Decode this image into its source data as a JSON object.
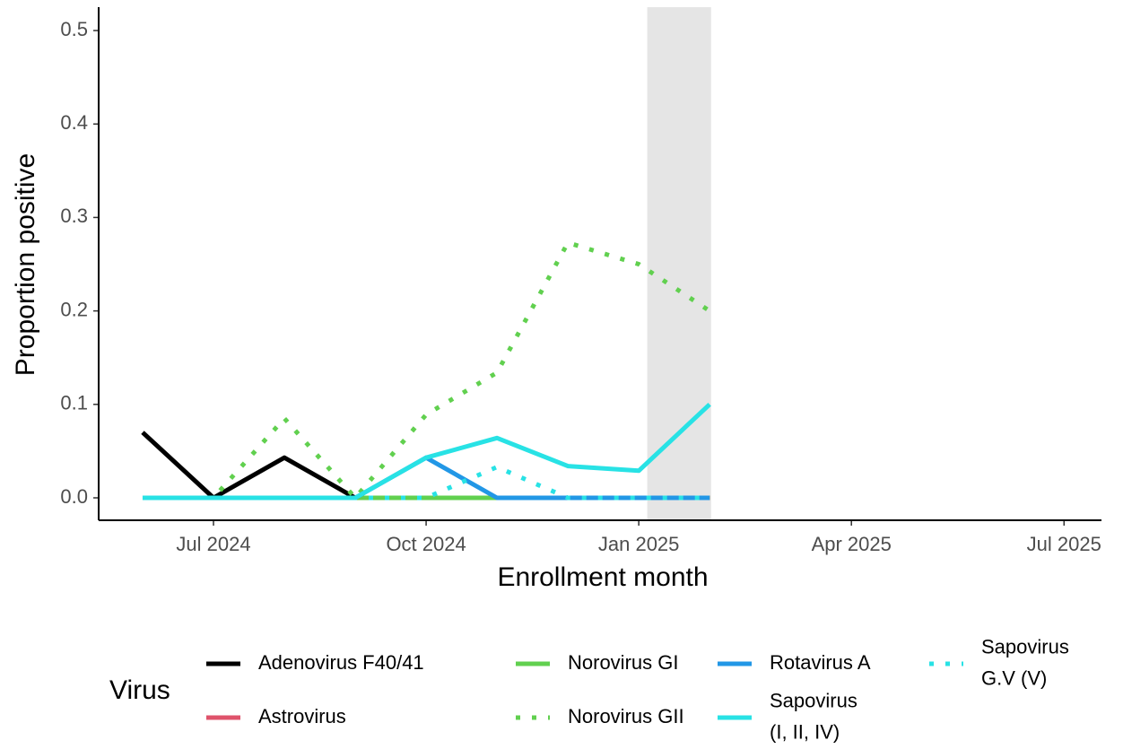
{
  "chart_data": {
    "type": "line",
    "x_label": "Enrollment month",
    "y_label": "Proportion positive",
    "legend_title": "Virus",
    "x": [
      "2024-06",
      "2024-07",
      "2024-08",
      "2024-09",
      "2024-10",
      "2024-11",
      "2024-12",
      "2025-01",
      "2025-02"
    ],
    "xlim": [
      2024.365,
      2025.544
    ],
    "xticks": [
      {
        "value": 2024.5,
        "label": "Jul 2024"
      },
      {
        "value": 2024.75,
        "label": "Oct 2024"
      },
      {
        "value": 2025,
        "label": "Jan 2025"
      },
      {
        "value": 2025.25,
        "label": "Apr 2025"
      },
      {
        "value": 2025.5,
        "label": "Jul 2025"
      }
    ],
    "ylim": [
      -0.024,
      0.525
    ],
    "yticks": [
      {
        "value": 0,
        "label": "0.0"
      },
      0.1,
      0.2,
      0.3,
      0.4,
      0.5
    ],
    "highlight_x": [
      2025.01,
      2025.085
    ],
    "series": [
      {
        "name": "Adenovirus F40/41",
        "color": "#000000",
        "linetype": "solid",
        "values": [
          0.07,
          0,
          0.043,
          0,
          0,
          0,
          0,
          0,
          0
        ]
      },
      {
        "name": "Astrovirus",
        "color": "#df536b",
        "linetype": "solid",
        "values": [
          0,
          0,
          0,
          0,
          0,
          0,
          0,
          0,
          0
        ]
      },
      {
        "name": "Norovirus GI",
        "color": "#61d04f",
        "linetype": "solid",
        "values": [
          0,
          0,
          0,
          0,
          0,
          0,
          0,
          0,
          0
        ]
      },
      {
        "name": "Norovirus GII",
        "color": "#61d04f",
        "linetype": "dotted",
        "values": [
          0,
          0,
          0.085,
          0,
          0.089,
          0.134,
          0.273,
          0.25,
          0.2
        ]
      },
      {
        "name": "Rotavirus A",
        "color": "#2297e6",
        "linetype": "solid",
        "values": [
          0,
          0,
          0,
          0,
          0.043,
          0,
          0,
          0,
          0
        ]
      },
      {
        "name": "Sapovirus\n(I, II, IV)",
        "color": "#28e2e5",
        "linetype": "solid",
        "values": [
          0,
          0,
          0,
          0,
          0.043,
          0.064,
          0.034,
          0.029,
          0.1
        ]
      },
      {
        "name": "Sapovirus\nG.V (V)",
        "color": "#28e2e5",
        "linetype": "dotted",
        "values": [
          0,
          0,
          0,
          0,
          0,
          0.033,
          0,
          0,
          0
        ]
      }
    ]
  }
}
